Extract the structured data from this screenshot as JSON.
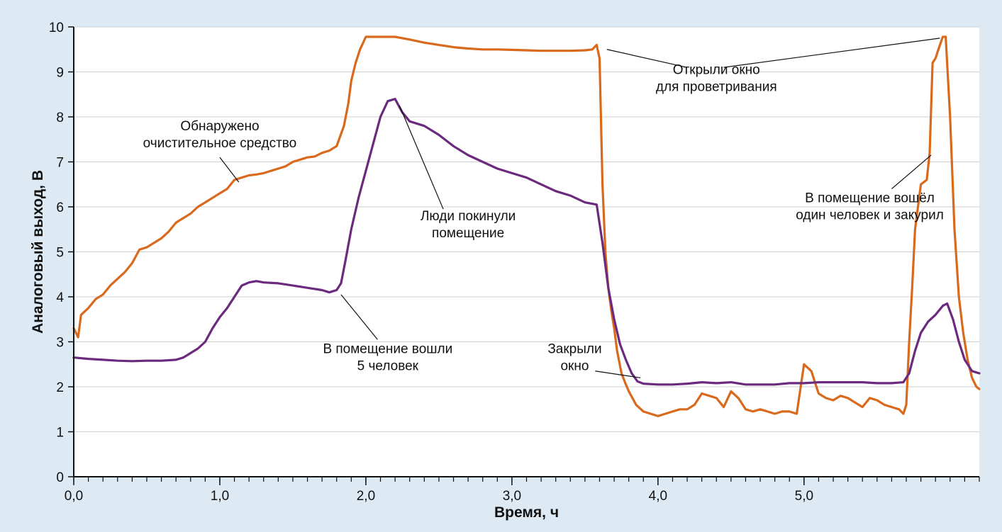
{
  "chart_data": {
    "type": "line",
    "xlabel": "Время, ч",
    "ylabel": "Аналоговый выход, В",
    "xlim": [
      0,
      6.2
    ],
    "ylim": [
      0,
      10
    ],
    "grid": true,
    "x_ticks": [
      {
        "value": 0,
        "label": "0,0"
      },
      {
        "value": 1,
        "label": "1,0"
      },
      {
        "value": 2,
        "label": "2,0"
      },
      {
        "value": 3,
        "label": "3,0"
      },
      {
        "value": 4,
        "label": "4,0"
      },
      {
        "value": 5,
        "label": "5,0"
      }
    ],
    "x_minor_step": 0.1,
    "y_ticks": [
      0,
      1,
      2,
      3,
      4,
      5,
      6,
      7,
      8,
      9,
      10
    ],
    "series": [
      {
        "color": "#d9691c",
        "points": [
          [
            0,
            3.3
          ],
          [
            0.03,
            3.1
          ],
          [
            0.05,
            3.6
          ],
          [
            0.1,
            3.75
          ],
          [
            0.15,
            3.95
          ],
          [
            0.2,
            4.05
          ],
          [
            0.25,
            4.25
          ],
          [
            0.3,
            4.4
          ],
          [
            0.35,
            4.55
          ],
          [
            0.4,
            4.75
          ],
          [
            0.45,
            5.05
          ],
          [
            0.5,
            5.1
          ],
          [
            0.55,
            5.2
          ],
          [
            0.6,
            5.3
          ],
          [
            0.65,
            5.45
          ],
          [
            0.7,
            5.65
          ],
          [
            0.75,
            5.75
          ],
          [
            0.8,
            5.85
          ],
          [
            0.85,
            6.0
          ],
          [
            0.9,
            6.1
          ],
          [
            0.95,
            6.2
          ],
          [
            1.0,
            6.3
          ],
          [
            1.05,
            6.4
          ],
          [
            1.1,
            6.6
          ],
          [
            1.15,
            6.65
          ],
          [
            1.2,
            6.7
          ],
          [
            1.25,
            6.72
          ],
          [
            1.3,
            6.75
          ],
          [
            1.35,
            6.8
          ],
          [
            1.4,
            6.85
          ],
          [
            1.45,
            6.9
          ],
          [
            1.5,
            7.0
          ],
          [
            1.55,
            7.05
          ],
          [
            1.6,
            7.1
          ],
          [
            1.65,
            7.12
          ],
          [
            1.7,
            7.2
          ],
          [
            1.75,
            7.25
          ],
          [
            1.8,
            7.35
          ],
          [
            1.85,
            7.8
          ],
          [
            1.88,
            8.3
          ],
          [
            1.9,
            8.8
          ],
          [
            1.93,
            9.2
          ],
          [
            1.96,
            9.5
          ],
          [
            2.0,
            9.78
          ],
          [
            2.05,
            9.78
          ],
          [
            2.1,
            9.78
          ],
          [
            2.2,
            9.78
          ],
          [
            2.3,
            9.72
          ],
          [
            2.4,
            9.65
          ],
          [
            2.5,
            9.6
          ],
          [
            2.6,
            9.55
          ],
          [
            2.7,
            9.52
          ],
          [
            2.8,
            9.5
          ],
          [
            2.9,
            9.5
          ],
          [
            3.0,
            9.49
          ],
          [
            3.1,
            9.48
          ],
          [
            3.2,
            9.47
          ],
          [
            3.3,
            9.47
          ],
          [
            3.4,
            9.47
          ],
          [
            3.5,
            9.48
          ],
          [
            3.55,
            9.5
          ],
          [
            3.58,
            9.6
          ],
          [
            3.6,
            9.3
          ],
          [
            3.62,
            6.5
          ],
          [
            3.64,
            5.0
          ],
          [
            3.66,
            4.2
          ],
          [
            3.68,
            3.7
          ],
          [
            3.7,
            3.3
          ],
          [
            3.72,
            2.8
          ],
          [
            3.75,
            2.3
          ],
          [
            3.78,
            2.05
          ],
          [
            3.8,
            1.9
          ],
          [
            3.85,
            1.6
          ],
          [
            3.9,
            1.45
          ],
          [
            3.95,
            1.4
          ],
          [
            4.0,
            1.35
          ],
          [
            4.05,
            1.4
          ],
          [
            4.1,
            1.45
          ],
          [
            4.15,
            1.5
          ],
          [
            4.2,
            1.5
          ],
          [
            4.25,
            1.6
          ],
          [
            4.3,
            1.85
          ],
          [
            4.35,
            1.8
          ],
          [
            4.4,
            1.75
          ],
          [
            4.45,
            1.55
          ],
          [
            4.5,
            1.9
          ],
          [
            4.55,
            1.75
          ],
          [
            4.6,
            1.5
          ],
          [
            4.65,
            1.45
          ],
          [
            4.7,
            1.5
          ],
          [
            4.75,
            1.45
          ],
          [
            4.8,
            1.4
          ],
          [
            4.85,
            1.45
          ],
          [
            4.9,
            1.45
          ],
          [
            4.95,
            1.4
          ],
          [
            5.0,
            2.5
          ],
          [
            5.05,
            2.35
          ],
          [
            5.1,
            1.85
          ],
          [
            5.15,
            1.75
          ],
          [
            5.2,
            1.7
          ],
          [
            5.25,
            1.8
          ],
          [
            5.3,
            1.75
          ],
          [
            5.35,
            1.65
          ],
          [
            5.4,
            1.55
          ],
          [
            5.45,
            1.75
          ],
          [
            5.5,
            1.7
          ],
          [
            5.55,
            1.6
          ],
          [
            5.6,
            1.55
          ],
          [
            5.65,
            1.5
          ],
          [
            5.68,
            1.4
          ],
          [
            5.7,
            1.6
          ],
          [
            5.72,
            3.0
          ],
          [
            5.74,
            4.2
          ],
          [
            5.76,
            5.5
          ],
          [
            5.78,
            6.0
          ],
          [
            5.8,
            6.5
          ],
          [
            5.82,
            6.55
          ],
          [
            5.84,
            6.6
          ],
          [
            5.86,
            7.2
          ],
          [
            5.88,
            9.2
          ],
          [
            5.9,
            9.3
          ],
          [
            5.92,
            9.5
          ],
          [
            5.95,
            9.78
          ],
          [
            5.97,
            9.78
          ],
          [
            6.0,
            8.0
          ],
          [
            6.03,
            5.5
          ],
          [
            6.06,
            4.0
          ],
          [
            6.09,
            3.2
          ],
          [
            6.12,
            2.6
          ],
          [
            6.15,
            2.2
          ],
          [
            6.18,
            2.0
          ],
          [
            6.2,
            1.95
          ]
        ]
      },
      {
        "color": "#6b2a7e",
        "points": [
          [
            0,
            2.65
          ],
          [
            0.1,
            2.62
          ],
          [
            0.2,
            2.6
          ],
          [
            0.3,
            2.58
          ],
          [
            0.4,
            2.57
          ],
          [
            0.5,
            2.58
          ],
          [
            0.6,
            2.58
          ],
          [
            0.7,
            2.6
          ],
          [
            0.75,
            2.65
          ],
          [
            0.8,
            2.75
          ],
          [
            0.85,
            2.85
          ],
          [
            0.9,
            3.0
          ],
          [
            0.95,
            3.3
          ],
          [
            1.0,
            3.55
          ],
          [
            1.05,
            3.75
          ],
          [
            1.1,
            4.0
          ],
          [
            1.15,
            4.25
          ],
          [
            1.2,
            4.32
          ],
          [
            1.25,
            4.35
          ],
          [
            1.3,
            4.32
          ],
          [
            1.4,
            4.3
          ],
          [
            1.5,
            4.25
          ],
          [
            1.6,
            4.2
          ],
          [
            1.7,
            4.15
          ],
          [
            1.75,
            4.1
          ],
          [
            1.8,
            4.15
          ],
          [
            1.83,
            4.3
          ],
          [
            1.86,
            4.8
          ],
          [
            1.9,
            5.5
          ],
          [
            1.95,
            6.2
          ],
          [
            2.0,
            6.8
          ],
          [
            2.05,
            7.4
          ],
          [
            2.1,
            8.0
          ],
          [
            2.15,
            8.35
          ],
          [
            2.2,
            8.4
          ],
          [
            2.25,
            8.1
          ],
          [
            2.3,
            7.9
          ],
          [
            2.4,
            7.8
          ],
          [
            2.5,
            7.6
          ],
          [
            2.6,
            7.35
          ],
          [
            2.7,
            7.15
          ],
          [
            2.8,
            7.0
          ],
          [
            2.9,
            6.85
          ],
          [
            3.0,
            6.75
          ],
          [
            3.1,
            6.65
          ],
          [
            3.2,
            6.5
          ],
          [
            3.3,
            6.35
          ],
          [
            3.4,
            6.25
          ],
          [
            3.5,
            6.1
          ],
          [
            3.58,
            6.05
          ],
          [
            3.62,
            5.2
          ],
          [
            3.66,
            4.2
          ],
          [
            3.7,
            3.5
          ],
          [
            3.74,
            2.95
          ],
          [
            3.78,
            2.6
          ],
          [
            3.82,
            2.3
          ],
          [
            3.86,
            2.12
          ],
          [
            3.9,
            2.07
          ],
          [
            4.0,
            2.05
          ],
          [
            4.1,
            2.05
          ],
          [
            4.2,
            2.07
          ],
          [
            4.3,
            2.1
          ],
          [
            4.4,
            2.08
          ],
          [
            4.5,
            2.1
          ],
          [
            4.6,
            2.05
          ],
          [
            4.7,
            2.05
          ],
          [
            4.8,
            2.05
          ],
          [
            4.9,
            2.08
          ],
          [
            5.0,
            2.08
          ],
          [
            5.1,
            2.1
          ],
          [
            5.2,
            2.1
          ],
          [
            5.3,
            2.1
          ],
          [
            5.4,
            2.1
          ],
          [
            5.5,
            2.08
          ],
          [
            5.6,
            2.08
          ],
          [
            5.68,
            2.1
          ],
          [
            5.72,
            2.3
          ],
          [
            5.76,
            2.8
          ],
          [
            5.8,
            3.2
          ],
          [
            5.85,
            3.45
          ],
          [
            5.9,
            3.6
          ],
          [
            5.95,
            3.8
          ],
          [
            5.98,
            3.85
          ],
          [
            6.02,
            3.5
          ],
          [
            6.06,
            3.0
          ],
          [
            6.1,
            2.6
          ],
          [
            6.15,
            2.35
          ],
          [
            6.2,
            2.3
          ]
        ]
      }
    ],
    "annotations": [
      {
        "lines": [
          "Обнаружено",
          "очиститeльное средство"
        ],
        "text_pos": [
          1.0,
          7.7
        ],
        "text_anchor": "middle",
        "leaders": [
          [
            [
              1.0,
              7.1
            ],
            [
              1.13,
              6.55
            ]
          ]
        ]
      },
      {
        "lines": [
          "Открыли окно",
          "для проветривания"
        ],
        "text_pos": [
          4.4,
          8.95
        ],
        "text_anchor": "middle",
        "leaders": [
          [
            [
              4.2,
              9.1
            ],
            [
              3.65,
              9.5
            ]
          ],
          [
            [
              4.45,
              9.1
            ],
            [
              5.93,
              9.75
            ]
          ]
        ]
      },
      {
        "lines": [
          "Люди покинули",
          "помещение"
        ],
        "text_pos": [
          2.7,
          5.7
        ],
        "text_anchor": "middle",
        "leaders": [
          [
            [
              2.53,
              5.95
            ],
            [
              2.23,
              8.25
            ]
          ]
        ]
      },
      {
        "lines": [
          "В помещение вошёл",
          "один человек и закурил"
        ],
        "text_pos": [
          5.45,
          6.1
        ],
        "text_anchor": "middle",
        "leaders": [
          [
            [
              5.6,
              6.4
            ],
            [
              5.87,
              7.15
            ]
          ]
        ]
      },
      {
        "lines": [
          "В помещение вошли",
          "5 человек"
        ],
        "text_pos": [
          2.15,
          2.75
        ],
        "text_anchor": "middle",
        "leaders": [
          [
            [
              2.08,
              3.05
            ],
            [
              1.83,
              4.05
            ]
          ]
        ]
      },
      {
        "lines": [
          "Закрыли",
          "окно"
        ],
        "text_pos": [
          3.43,
          2.75
        ],
        "text_anchor": "middle",
        "leaders": [
          [
            [
              3.57,
              2.35
            ],
            [
              3.88,
              2.2
            ]
          ]
        ]
      }
    ]
  }
}
